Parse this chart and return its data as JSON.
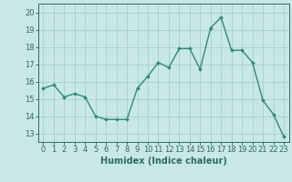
{
  "x": [
    0,
    1,
    2,
    3,
    4,
    5,
    6,
    7,
    8,
    9,
    10,
    11,
    12,
    13,
    14,
    15,
    16,
    17,
    18,
    19,
    20,
    21,
    22,
    23
  ],
  "y": [
    15.6,
    15.8,
    15.1,
    15.3,
    15.1,
    14.0,
    13.8,
    13.8,
    13.8,
    15.6,
    16.3,
    17.1,
    16.8,
    17.9,
    17.9,
    16.7,
    19.1,
    19.7,
    17.8,
    17.8,
    17.1,
    14.9,
    14.1,
    12.8
  ],
  "line_color": "#2e8b74",
  "marker": "D",
  "marker_size": 2.0,
  "linewidth": 1.0,
  "background_color": "#c8e8e8",
  "grid_color": "#a0c8c8",
  "xlabel": "Humidex (Indice chaleur)",
  "xlim": [
    -0.5,
    23.5
  ],
  "ylim": [
    12.5,
    20.5
  ],
  "yticks": [
    13,
    14,
    15,
    16,
    17,
    18,
    19,
    20
  ],
  "xticks": [
    0,
    1,
    2,
    3,
    4,
    5,
    6,
    7,
    8,
    9,
    10,
    11,
    12,
    13,
    14,
    15,
    16,
    17,
    18,
    19,
    20,
    21,
    22,
    23
  ],
  "xlabel_fontsize": 7.0,
  "tick_fontsize": 6.0,
  "axis_color": "#2e6b5e"
}
